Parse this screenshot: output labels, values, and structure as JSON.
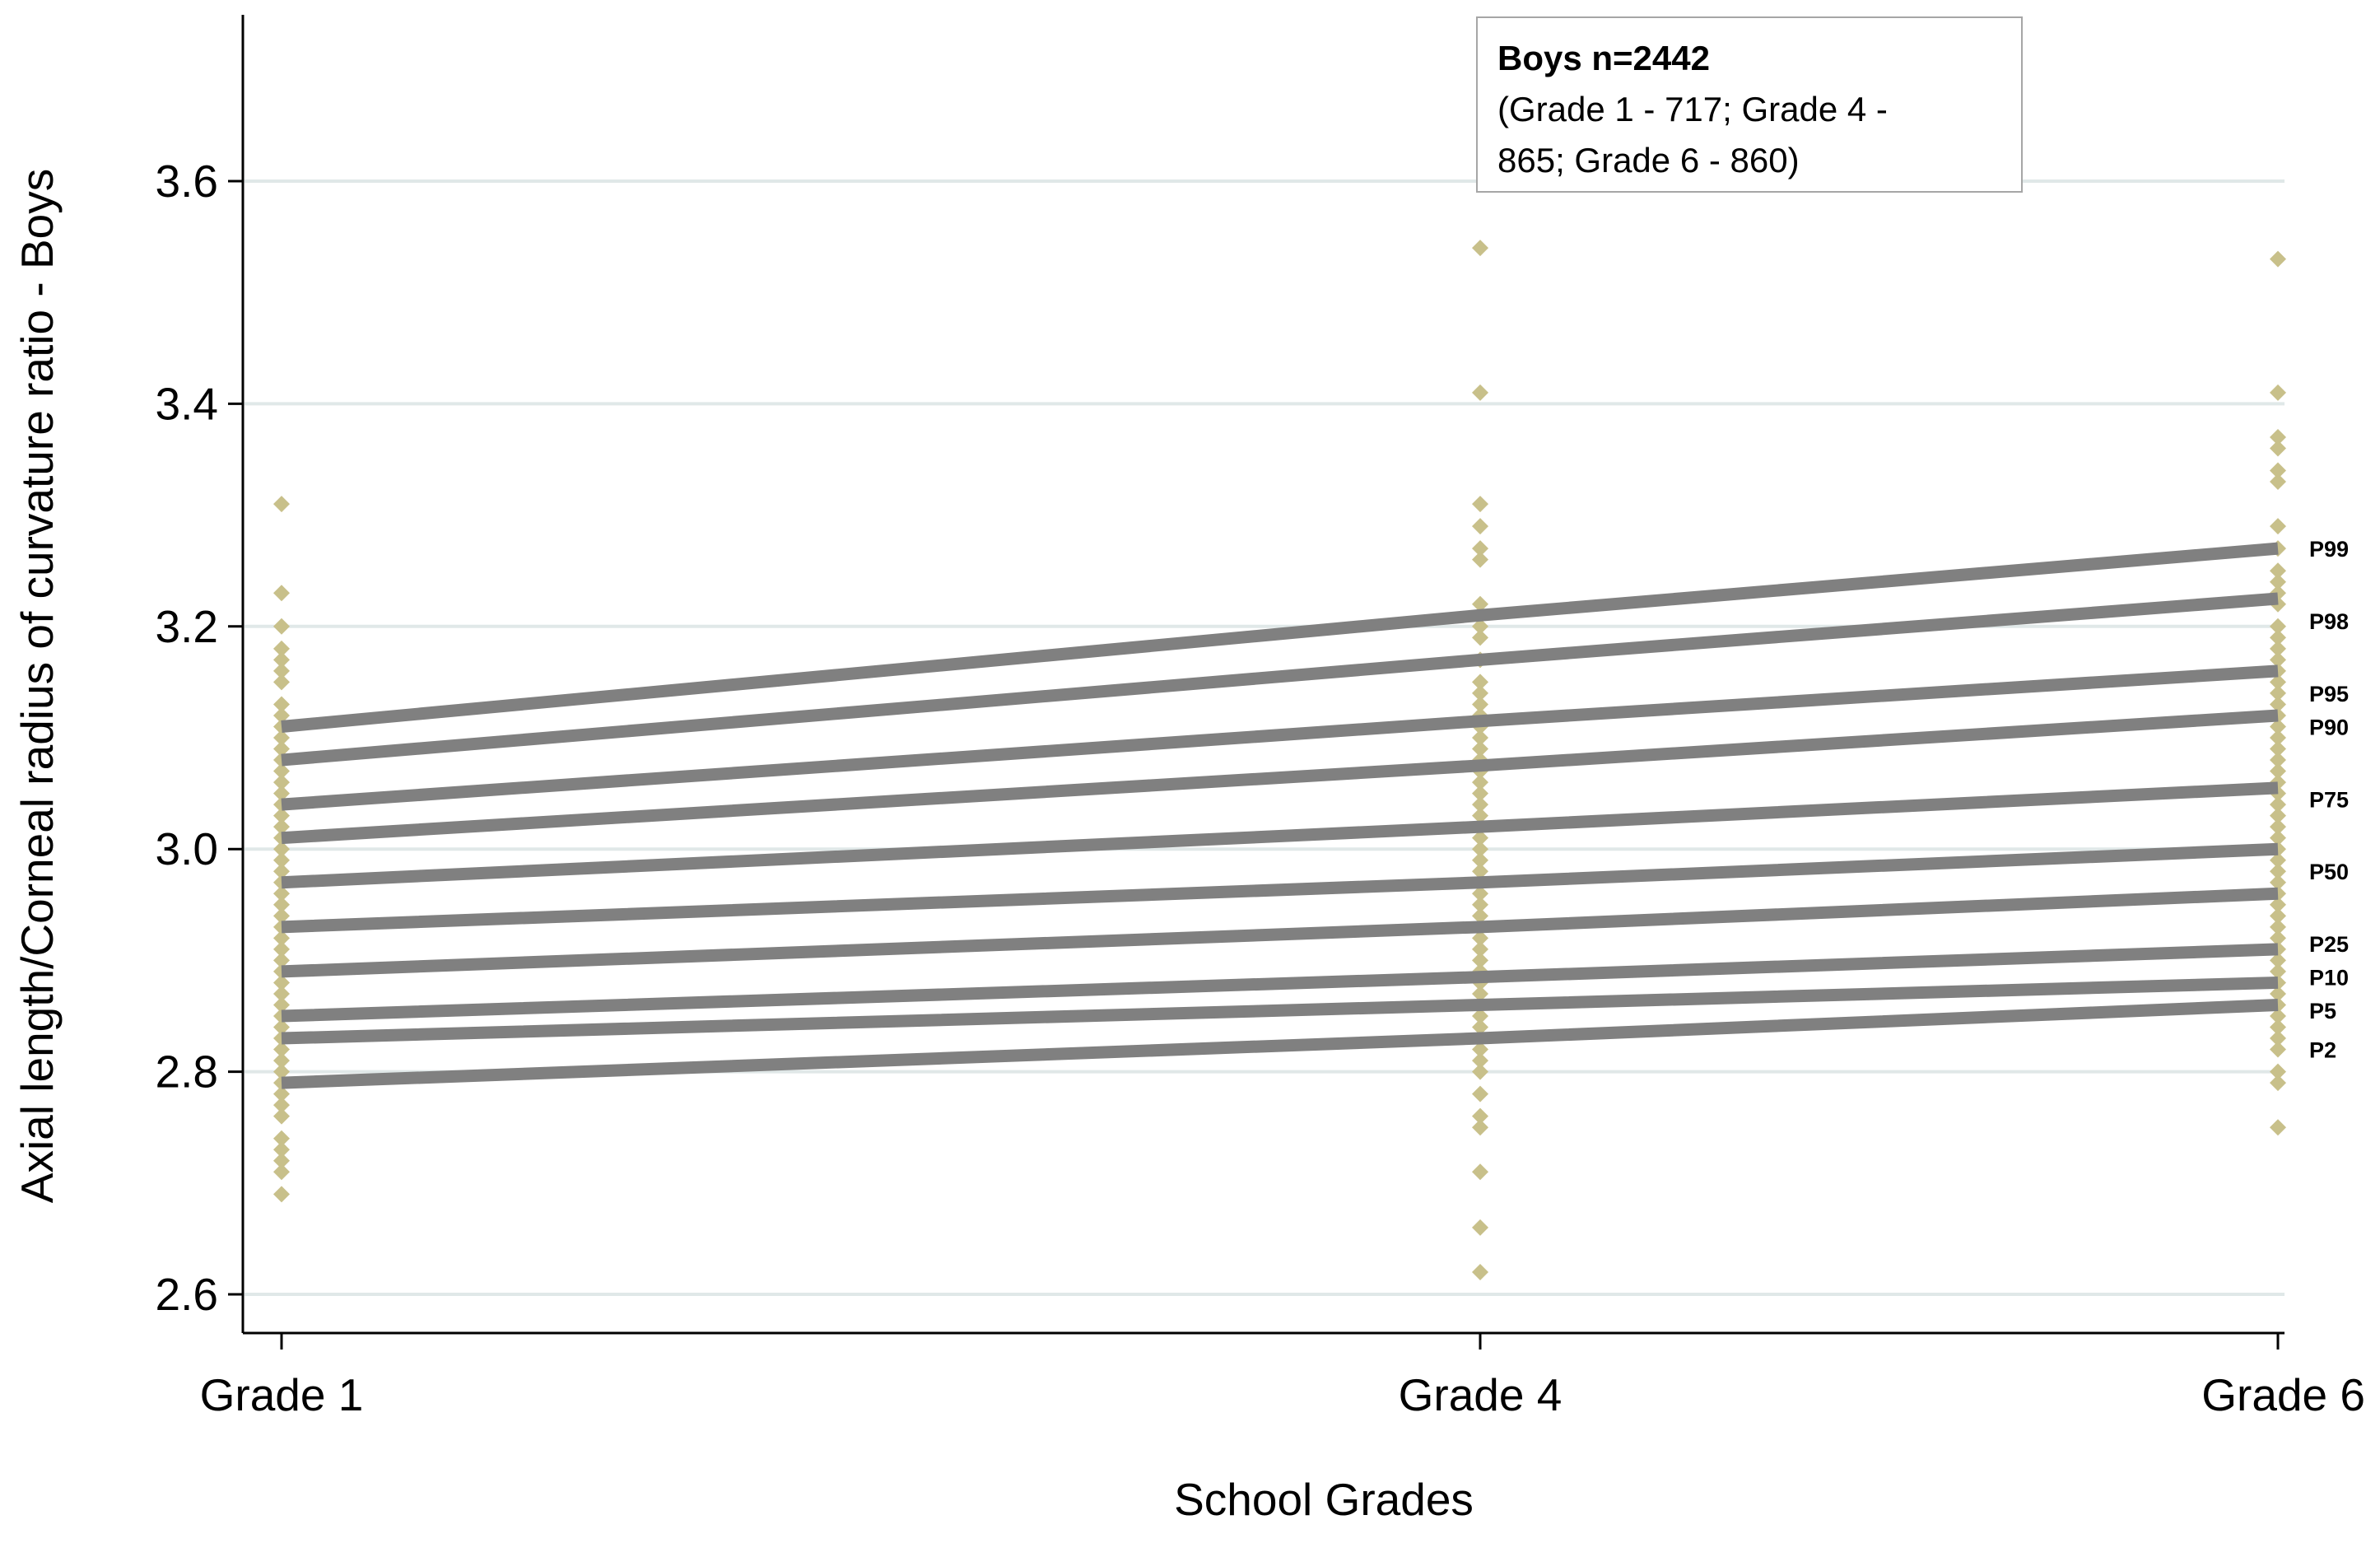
{
  "chart_data": {
    "type": "line",
    "xlabel": "School Grades",
    "ylabel": "Axial length/Corneal  radius of curvature ratio - Boys",
    "categories": [
      "Grade 1",
      "Grade 4",
      "Grade 6"
    ],
    "ylim": [
      2.6,
      3.6
    ],
    "yticks": [
      "2.6",
      "2.8",
      "3.0",
      "3.2",
      "3.4",
      "3.6"
    ],
    "ytick_values": [
      2.6,
      2.8,
      3.0,
      3.2,
      3.4,
      3.6
    ],
    "grid": true,
    "legend": {
      "title": "Boys n=2442",
      "text": "(Grade 1 - 717; Grade 4 - 865; Grade 6 - 860)",
      "line2": "(Grade 1 - 717; Grade 4 -",
      "line3": "865; Grade 6 - 860)",
      "placement": "top-right"
    },
    "colors": {
      "line": "#808080",
      "point": "#c8c08a",
      "grid": "#e0e8e8",
      "axis": "#000000"
    },
    "series": [
      {
        "name": "P99",
        "values": [
          3.11,
          3.21,
          3.27
        ]
      },
      {
        "name": "P98",
        "values": [
          3.08,
          3.17,
          3.225
        ]
      },
      {
        "name": "P95",
        "values": [
          3.04,
          3.115,
          3.16
        ]
      },
      {
        "name": "P90",
        "values": [
          3.01,
          3.075,
          3.12
        ]
      },
      {
        "name": "P75",
        "values": [
          2.97,
          3.02,
          3.055
        ]
      },
      {
        "name": "P50",
        "values": [
          2.93,
          2.97,
          3.0
        ]
      },
      {
        "name": "P25",
        "values": [
          2.89,
          2.93,
          2.96
        ]
      },
      {
        "name": "P10",
        "values": [
          2.85,
          2.885,
          2.91
        ]
      },
      {
        "name": "P5",
        "values": [
          2.83,
          2.86,
          2.88
        ]
      },
      {
        "name": "P2",
        "values": [
          2.79,
          2.83,
          2.86
        ]
      }
    ],
    "label_values": [
      3.27,
      3.205,
      3.14,
      3.11,
      3.045,
      2.98,
      2.915,
      2.885,
      2.855,
      2.82
    ],
    "scatter": [
      {
        "category": "Grade 1",
        "values": [
          2.69,
          2.71,
          2.72,
          2.73,
          2.74,
          2.76,
          2.77,
          2.78,
          2.79,
          2.8,
          2.81,
          2.82,
          2.83,
          2.84,
          2.85,
          2.86,
          2.87,
          2.88,
          2.89,
          2.9,
          2.91,
          2.92,
          2.93,
          2.94,
          2.95,
          2.96,
          2.97,
          2.98,
          2.99,
          3.0,
          3.01,
          3.02,
          3.03,
          3.04,
          3.05,
          3.06,
          3.07,
          3.08,
          3.09,
          3.1,
          3.11,
          3.12,
          3.13,
          3.15,
          3.16,
          3.17,
          3.18,
          3.2,
          3.23,
          3.31
        ]
      },
      {
        "category": "Grade 4",
        "values": [
          2.62,
          2.66,
          2.71,
          2.75,
          2.76,
          2.78,
          2.8,
          2.81,
          2.82,
          2.83,
          2.84,
          2.85,
          2.86,
          2.87,
          2.88,
          2.89,
          2.9,
          2.91,
          2.92,
          2.93,
          2.94,
          2.95,
          2.96,
          2.97,
          2.98,
          2.99,
          3.0,
          3.01,
          3.02,
          3.03,
          3.04,
          3.05,
          3.06,
          3.07,
          3.08,
          3.09,
          3.1,
          3.11,
          3.12,
          3.13,
          3.14,
          3.15,
          3.17,
          3.19,
          3.2,
          3.22,
          3.26,
          3.27,
          3.29,
          3.31,
          3.41,
          3.54
        ]
      },
      {
        "category": "Grade 6",
        "values": [
          2.75,
          2.79,
          2.8,
          2.82,
          2.83,
          2.84,
          2.85,
          2.86,
          2.87,
          2.88,
          2.89,
          2.9,
          2.91,
          2.92,
          2.93,
          2.94,
          2.95,
          2.96,
          2.97,
          2.98,
          2.99,
          3.0,
          3.01,
          3.02,
          3.03,
          3.04,
          3.05,
          3.06,
          3.07,
          3.08,
          3.09,
          3.1,
          3.11,
          3.12,
          3.13,
          3.14,
          3.15,
          3.16,
          3.17,
          3.18,
          3.19,
          3.2,
          3.22,
          3.23,
          3.24,
          3.25,
          3.27,
          3.29,
          3.33,
          3.34,
          3.36,
          3.37,
          3.41,
          3.53
        ]
      }
    ]
  }
}
